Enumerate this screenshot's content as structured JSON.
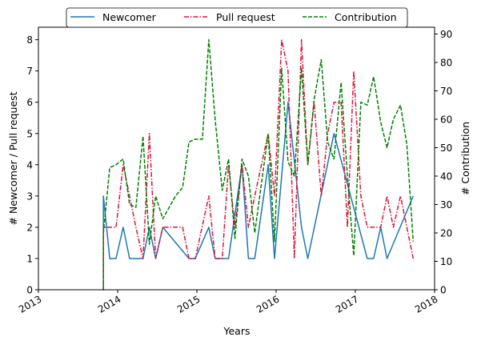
{
  "chart_data": {
    "type": "line",
    "xlabel": "Years",
    "ylabel_left": "# Newcomer / Pull request",
    "ylabel_right": "# Contribution",
    "xlim": [
      2013.0,
      2018.0
    ],
    "ylim_left": [
      0,
      8.4
    ],
    "ylim_right": [
      0,
      92.4
    ],
    "x_ticks": [
      2013,
      2014,
      2015,
      2016,
      2017,
      2018
    ],
    "x_tick_labels": [
      "2013",
      "2014",
      "2015",
      "2016",
      "2017",
      "2018"
    ],
    "y_left_ticks": [
      0,
      1,
      2,
      3,
      4,
      5,
      6,
      7,
      8
    ],
    "y_left_tick_labels": [
      "0",
      "1",
      "2",
      "3",
      "4",
      "5",
      "6",
      "7",
      "8"
    ],
    "y_right_ticks": [
      0,
      10,
      20,
      30,
      40,
      50,
      60,
      70,
      80,
      90
    ],
    "y_right_tick_labels": [
      "0",
      "10",
      "20",
      "30",
      "40",
      "50",
      "60",
      "70",
      "80",
      "90"
    ],
    "grid": false,
    "legend_position": "top-center",
    "series": [
      {
        "name": "Newcomer",
        "axis": "left",
        "color": "#1f77b4",
        "style": "solid",
        "points": [
          [
            2013.82,
            3
          ],
          [
            2013.82,
            0
          ],
          [
            2013.82,
            3
          ],
          [
            2013.9,
            1
          ],
          [
            2013.98,
            1
          ],
          [
            2014.07,
            2
          ],
          [
            2014.15,
            1
          ],
          [
            2014.32,
            1
          ],
          [
            2014.4,
            2
          ],
          [
            2014.48,
            1
          ],
          [
            2014.57,
            2
          ],
          [
            2014.9,
            1
          ],
          [
            2014.98,
            1
          ],
          [
            2015.15,
            2
          ],
          [
            2015.23,
            1
          ],
          [
            2015.32,
            1
          ],
          [
            2015.4,
            1
          ],
          [
            2015.57,
            4
          ],
          [
            2015.65,
            1
          ],
          [
            2015.73,
            1
          ],
          [
            2015.9,
            4
          ],
          [
            2015.98,
            1
          ],
          [
            2016.15,
            6
          ],
          [
            2016.32,
            2
          ],
          [
            2016.4,
            1
          ],
          [
            2016.73,
            5
          ],
          [
            2017.15,
            1
          ],
          [
            2017.23,
            1
          ],
          [
            2017.32,
            2
          ],
          [
            2017.4,
            1
          ],
          [
            2017.73,
            3
          ]
        ]
      },
      {
        "name": "Pull request",
        "axis": "left",
        "color": "#dc143c",
        "style": "dashdot",
        "points": [
          [
            2013.82,
            2
          ],
          [
            2013.82,
            0
          ],
          [
            2013.82,
            2
          ],
          [
            2013.9,
            2
          ],
          [
            2013.98,
            2
          ],
          [
            2014.07,
            4
          ],
          [
            2014.15,
            3
          ],
          [
            2014.23,
            2
          ],
          [
            2014.32,
            1
          ],
          [
            2014.4,
            5
          ],
          [
            2014.48,
            1
          ],
          [
            2014.57,
            2
          ],
          [
            2014.73,
            2
          ],
          [
            2014.82,
            2
          ],
          [
            2014.9,
            1
          ],
          [
            2014.98,
            1
          ],
          [
            2015.15,
            3
          ],
          [
            2015.23,
            1
          ],
          [
            2015.32,
            1
          ],
          [
            2015.4,
            4
          ],
          [
            2015.48,
            2
          ],
          [
            2015.57,
            4
          ],
          [
            2015.65,
            2
          ],
          [
            2015.73,
            3
          ],
          [
            2015.9,
            5
          ],
          [
            2015.98,
            3
          ],
          [
            2016.07,
            8
          ],
          [
            2016.15,
            7
          ],
          [
            2016.23,
            1
          ],
          [
            2016.32,
            8
          ],
          [
            2016.4,
            4
          ],
          [
            2016.48,
            6
          ],
          [
            2016.57,
            3
          ],
          [
            2016.65,
            5
          ],
          [
            2016.73,
            6
          ],
          [
            2016.82,
            6
          ],
          [
            2016.9,
            2
          ],
          [
            2016.98,
            7
          ],
          [
            2017.07,
            3
          ],
          [
            2017.15,
            2
          ],
          [
            2017.23,
            2
          ],
          [
            2017.32,
            2
          ],
          [
            2017.4,
            3
          ],
          [
            2017.48,
            2
          ],
          [
            2017.57,
            3
          ],
          [
            2017.73,
            1
          ]
        ]
      },
      {
        "name": "Contribution",
        "axis": "right",
        "color": "#008000",
        "style": "dashed",
        "points": [
          [
            2013.82,
            0
          ],
          [
            2013.82,
            20
          ],
          [
            2013.9,
            43
          ],
          [
            2013.98,
            44
          ],
          [
            2014.07,
            46
          ],
          [
            2014.15,
            30
          ],
          [
            2014.23,
            29
          ],
          [
            2014.32,
            54
          ],
          [
            2014.4,
            16
          ],
          [
            2014.48,
            33
          ],
          [
            2014.57,
            25
          ],
          [
            2014.73,
            33
          ],
          [
            2014.82,
            36
          ],
          [
            2014.9,
            52
          ],
          [
            2014.98,
            53
          ],
          [
            2015.07,
            53
          ],
          [
            2015.15,
            88
          ],
          [
            2015.23,
            60
          ],
          [
            2015.32,
            35
          ],
          [
            2015.4,
            46
          ],
          [
            2015.48,
            18
          ],
          [
            2015.57,
            46
          ],
          [
            2015.65,
            40
          ],
          [
            2015.73,
            20
          ],
          [
            2015.9,
            55
          ],
          [
            2015.98,
            17
          ],
          [
            2016.07,
            78
          ],
          [
            2016.15,
            45
          ],
          [
            2016.23,
            40
          ],
          [
            2016.32,
            78
          ],
          [
            2016.4,
            44
          ],
          [
            2016.48,
            67
          ],
          [
            2016.57,
            81
          ],
          [
            2016.65,
            52
          ],
          [
            2016.73,
            46
          ],
          [
            2016.82,
            73
          ],
          [
            2016.9,
            40
          ],
          [
            2016.98,
            12
          ],
          [
            2017.07,
            66
          ],
          [
            2017.15,
            65
          ],
          [
            2017.23,
            75
          ],
          [
            2017.32,
            59
          ],
          [
            2017.4,
            50
          ],
          [
            2017.48,
            60
          ],
          [
            2017.57,
            65
          ],
          [
            2017.65,
            51
          ],
          [
            2017.73,
            17
          ]
        ]
      }
    ]
  }
}
